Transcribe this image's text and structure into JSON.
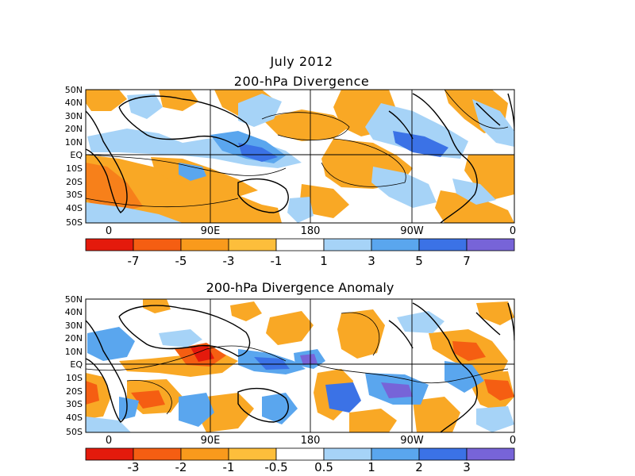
{
  "header": {
    "line1": "July 2012",
    "line2": "200-hPa Divergence"
  },
  "panels": [
    {
      "id": "divergence",
      "title": "200-hPa Divergence",
      "lat_labels": [
        "50N",
        "40N",
        "30N",
        "20N",
        "10N",
        "EQ",
        "10S",
        "20S",
        "30S",
        "40S",
        "50S"
      ],
      "lon_labels": [
        "0",
        "90E",
        "180",
        "90W",
        "0"
      ],
      "colorbar": {
        "labels": [
          "-7",
          "-5",
          "-3",
          "-1",
          "1",
          "3",
          "5",
          "7"
        ],
        "colors": [
          "#e41a0c",
          "#f55e12",
          "#f99a1c",
          "#fdbe3b",
          "#ffffff",
          "#a6d3f7",
          "#5aa6ee",
          "#3b72e6",
          "#7764d8"
        ]
      }
    },
    {
      "id": "anomaly",
      "title": "200-hPa Divergence Anomaly",
      "lat_labels": [
        "50N",
        "40N",
        "30N",
        "20N",
        "10N",
        "EQ",
        "10S",
        "20S",
        "30S",
        "40S",
        "50S"
      ],
      "lon_labels": [
        "0",
        "90E",
        "180",
        "90W",
        "0"
      ],
      "colorbar": {
        "labels": [
          "-3",
          "-2",
          "-1",
          "-0.5",
          "0.5",
          "1",
          "2",
          "3"
        ],
        "colors": [
          "#e41a0c",
          "#f55e12",
          "#f99a1c",
          "#fdbe3b",
          "#ffffff",
          "#a6d3f7",
          "#5aa6ee",
          "#3b72e6",
          "#7764d8"
        ]
      }
    }
  ],
  "map_colors": {
    "neg_strong": "#f55e12",
    "neg": "#f9a825",
    "neg_light": "#fcc24a",
    "pos_light": "#a6d3f7",
    "pos": "#5aa6ee",
    "pos_strong": "#3b72e6",
    "pos_max": "#7764d8",
    "coast": "#000000"
  }
}
